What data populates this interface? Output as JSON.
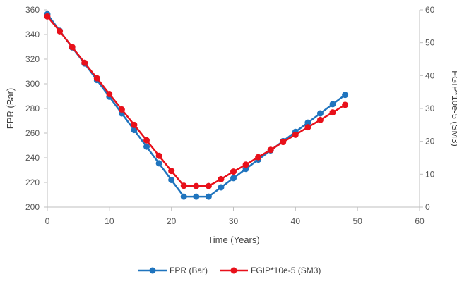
{
  "chart_data": {
    "type": "line",
    "xlabel": "Time (Years)",
    "ylabel": "FPR (Bar)",
    "y2label": "FGIP*10e-5 (SM3)",
    "x_ticks": [
      "0",
      "10",
      "20",
      "30",
      "40",
      "50",
      "60"
    ],
    "y_ticks": [
      "200",
      "220",
      "240",
      "260",
      "280",
      "300",
      "320",
      "340",
      "360"
    ],
    "y2_ticks": [
      "0",
      "10",
      "20",
      "30",
      "40",
      "50",
      "60"
    ],
    "xlim": [
      0,
      60
    ],
    "ylim": [
      200,
      360
    ],
    "y2lim": [
      0,
      60
    ],
    "grid": false,
    "legend_position": "bottom",
    "x": [
      0,
      2,
      4,
      6,
      8,
      10,
      12,
      14,
      16,
      18,
      20,
      22,
      24,
      26,
      28,
      30,
      32,
      34,
      36,
      38,
      40,
      42,
      44,
      46,
      48
    ],
    "series": [
      {
        "name": "FPR (Bar)",
        "axis": "left",
        "color": "#1F74BE",
        "values": [
          356.5,
          343.0,
          329.5,
          316.5,
          303.0,
          289.5,
          276.0,
          262.5,
          249.0,
          235.5,
          222.0,
          208.5,
          208.5,
          208.5,
          216.0,
          223.5,
          231.0,
          238.5,
          246.0,
          253.5,
          261.0,
          268.5,
          276.0,
          283.5,
          291.0
        ]
      },
      {
        "name": "FGIP*10e-5 (SM3)",
        "axis": "right",
        "color": "#E8101A",
        "values": [
          58.0,
          53.5,
          48.7,
          43.9,
          39.2,
          34.4,
          29.7,
          25.0,
          20.3,
          15.6,
          11.0,
          6.5,
          6.4,
          6.4,
          8.5,
          10.8,
          12.9,
          15.2,
          17.4,
          19.8,
          22.0,
          24.3,
          26.5,
          28.8,
          31.1
        ]
      }
    ]
  }
}
